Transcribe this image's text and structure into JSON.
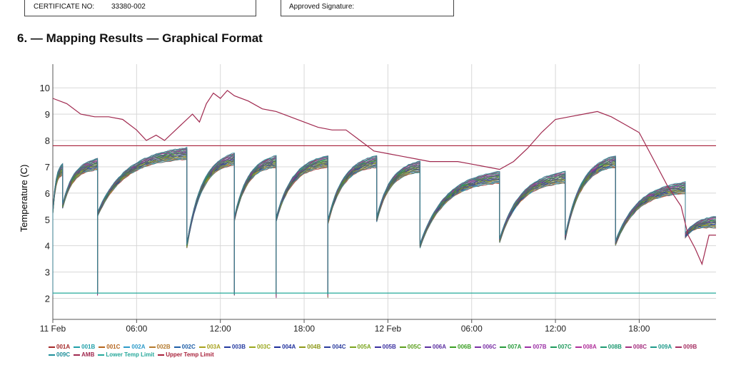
{
  "header": {
    "certificate_label": "CERTIFICATE NO:",
    "certificate_value": "33380-002",
    "signature_label": "Approved Signature:"
  },
  "section_title": "6. — Mapping Results — Graphical Format",
  "chart_data": {
    "type": "line",
    "title": "",
    "xlabel": "",
    "ylabel": "Temperature (C)",
    "x_unit": "hours from 11 Feb 00:00",
    "xlim": [
      0,
      47.5
    ],
    "ylim": [
      1.2,
      10.9
    ],
    "yticks": [
      2,
      3,
      4,
      5,
      6,
      7,
      8,
      9,
      10
    ],
    "xticks": [
      {
        "x": 0,
        "label": "11 Feb"
      },
      {
        "x": 6,
        "label": "06:00"
      },
      {
        "x": 12,
        "label": "12:00"
      },
      {
        "x": 18,
        "label": "18:00"
      },
      {
        "x": 24,
        "label": "12 Feb"
      },
      {
        "x": 30,
        "label": "06:00"
      },
      {
        "x": 36,
        "label": "12:00"
      },
      {
        "x": 42,
        "label": "18:00"
      }
    ],
    "grid": true,
    "legend_position": "bottom",
    "probe_cycle": {
      "description": "door-open style cycles common to all 27 probes",
      "cycles": [
        {
          "start": 0.0,
          "end": 0.7,
          "low": 5.3,
          "high": 6.9,
          "dip": 2.1
        },
        {
          "start": 0.7,
          "end": 3.2,
          "low": 5.5,
          "high": 7.1,
          "dip": null
        },
        {
          "start": 3.2,
          "end": 9.6,
          "low": 5.2,
          "high": 7.5,
          "dip": 2.1
        },
        {
          "start": 9.6,
          "end": 13.0,
          "low": 4.0,
          "high": 7.3,
          "dip": null
        },
        {
          "start": 13.0,
          "end": 16.0,
          "low": 5.0,
          "high": 7.2,
          "dip": 2.1
        },
        {
          "start": 16.0,
          "end": 19.7,
          "low": 5.0,
          "high": 7.2,
          "dip": 2.0
        },
        {
          "start": 19.7,
          "end": 23.2,
          "low": 4.9,
          "high": 7.2,
          "dip": 2.0
        },
        {
          "start": 23.2,
          "end": 26.3,
          "low": 5.0,
          "high": 7.0,
          "dip": null
        },
        {
          "start": 26.3,
          "end": 32.0,
          "low": 4.0,
          "high": 6.6,
          "dip": null
        },
        {
          "start": 32.0,
          "end": 36.7,
          "low": 4.2,
          "high": 6.6,
          "dip": null
        },
        {
          "start": 36.7,
          "end": 40.3,
          "low": 4.3,
          "high": 7.2,
          "dip": null
        },
        {
          "start": 40.3,
          "end": 45.3,
          "low": 4.1,
          "high": 6.2,
          "dip": null
        },
        {
          "start": 45.3,
          "end": 47.5,
          "low": 4.4,
          "high": 4.9,
          "dip": null
        }
      ]
    },
    "amb": {
      "x": [
        0,
        1,
        2,
        3,
        4,
        5,
        6,
        6.7,
        7.4,
        8,
        9,
        10,
        10.5,
        11,
        11.5,
        12,
        12.5,
        13,
        14,
        15,
        16,
        17,
        18,
        19,
        20,
        21,
        22,
        23,
        24,
        25,
        26,
        27,
        28,
        29,
        30,
        31,
        32,
        33,
        34,
        35,
        36,
        37,
        38,
        39,
        40,
        41,
        42,
        43,
        44,
        45,
        45.5,
        46,
        46.5,
        47,
        47.5
      ],
      "y": [
        9.6,
        9.4,
        9.0,
        8.9,
        8.9,
        8.8,
        8.4,
        8.0,
        8.2,
        8.0,
        8.5,
        9.0,
        8.7,
        9.4,
        9.8,
        9.6,
        9.9,
        9.7,
        9.5,
        9.2,
        9.1,
        8.9,
        8.7,
        8.5,
        8.4,
        8.4,
        8.0,
        7.6,
        7.5,
        7.4,
        7.3,
        7.2,
        7.2,
        7.2,
        7.1,
        7.0,
        6.9,
        7.2,
        7.7,
        8.3,
        8.8,
        8.9,
        9.0,
        9.1,
        8.9,
        8.6,
        8.3,
        7.3,
        6.3,
        5.5,
        4.4,
        3.9,
        3.3,
        4.4,
        4.4
      ]
    },
    "limits": {
      "lower": 2.2,
      "upper": 7.8
    },
    "series": [
      {
        "name": "001A",
        "color": "#a52a2a"
      },
      {
        "name": "001B",
        "color": "#1f9fa8"
      },
      {
        "name": "001C",
        "color": "#b5651d"
      },
      {
        "name": "002A",
        "color": "#2c9ac9"
      },
      {
        "name": "002B",
        "color": "#b47a2e"
      },
      {
        "name": "002C",
        "color": "#1f5fa8"
      },
      {
        "name": "003A",
        "color": "#a8a21f"
      },
      {
        "name": "003B",
        "color": "#243aa0"
      },
      {
        "name": "003C",
        "color": "#9aa81f"
      },
      {
        "name": "004A",
        "color": "#1e2f9c"
      },
      {
        "name": "004B",
        "color": "#8e9a1a"
      },
      {
        "name": "004C",
        "color": "#2b3c9e"
      },
      {
        "name": "005A",
        "color": "#7ba51f"
      },
      {
        "name": "005B",
        "color": "#3a2fa0"
      },
      {
        "name": "005C",
        "color": "#5ca01f"
      },
      {
        "name": "006A",
        "color": "#5b2fa0"
      },
      {
        "name": "006B",
        "color": "#3a9f23"
      },
      {
        "name": "006C",
        "color": "#7a2fa5"
      },
      {
        "name": "007A",
        "color": "#279b3a"
      },
      {
        "name": "007B",
        "color": "#9b2fa5"
      },
      {
        "name": "007C",
        "color": "#1f9a5c"
      },
      {
        "name": "008A",
        "color": "#b02f9a"
      },
      {
        "name": "008B",
        "color": "#1f9a72"
      },
      {
        "name": "008C",
        "color": "#a52f7f"
      },
      {
        "name": "009A",
        "color": "#1f9a8a"
      },
      {
        "name": "009B",
        "color": "#a52f62"
      },
      {
        "name": "009C",
        "color": "#1f8f9a"
      },
      {
        "name": "AMB",
        "color": "#a0294f"
      },
      {
        "name": "Lower Temp Limit",
        "color": "#25a89a"
      },
      {
        "name": "Upper Temp Limit",
        "color": "#a8213a"
      }
    ]
  }
}
